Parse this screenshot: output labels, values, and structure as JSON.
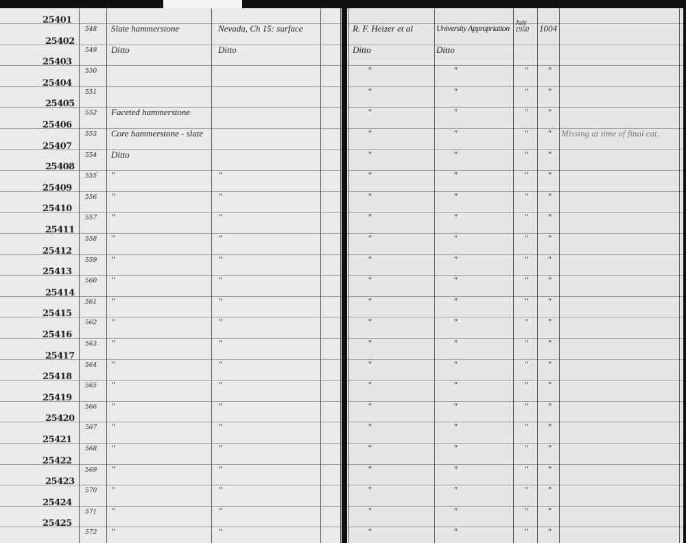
{
  "ledger": {
    "rows": [
      {
        "acc": "25401",
        "cat": "548",
        "desc": "Slate hammerstone",
        "locality": "Nevada, Ch 15: surface",
        "collector": "R. F. Heizer et al",
        "acquired": "University Appropriation",
        "date": "July 1950",
        "value": "1004",
        "remark": ""
      },
      {
        "acc": "25402",
        "cat": "549",
        "desc": "Ditto",
        "locality": "Ditto",
        "collector": "Ditto",
        "acquired": "Ditto",
        "date": "",
        "value": "",
        "remark": ""
      },
      {
        "acc": "25403",
        "cat": "550",
        "desc": "",
        "locality": "",
        "collector": "\"",
        "acquired": "\"",
        "date": "\"",
        "value": "\"",
        "remark": ""
      },
      {
        "acc": "25404",
        "cat": "551",
        "desc": "",
        "locality": "",
        "collector": "\"",
        "acquired": "\"",
        "date": "\"",
        "value": "\"",
        "remark": ""
      },
      {
        "acc": "25405",
        "cat": "552",
        "desc": "Faceted hammerstone",
        "locality": "",
        "collector": "\"",
        "acquired": "\"",
        "date": "\"",
        "value": "\"",
        "remark": ""
      },
      {
        "acc": "25406",
        "cat": "553",
        "desc": "Core hammerstone - slate",
        "locality": "",
        "collector": "\"",
        "acquired": "\"",
        "date": "\"",
        "value": "\"",
        "remark": "Missing at time of final cat."
      },
      {
        "acc": "25407",
        "cat": "554",
        "desc": "Ditto",
        "locality": "",
        "collector": "\"",
        "acquired": "\"",
        "date": "\"",
        "value": "\"",
        "remark": ""
      },
      {
        "acc": "25408",
        "cat": "555",
        "desc": "\"",
        "locality": "\"",
        "collector": "\"",
        "acquired": "\"",
        "date": "\"",
        "value": "\"",
        "remark": ""
      },
      {
        "acc": "25409",
        "cat": "556",
        "desc": "\"",
        "locality": "\"",
        "collector": "\"",
        "acquired": "\"",
        "date": "\"",
        "value": "\"",
        "remark": ""
      },
      {
        "acc": "25410",
        "cat": "557",
        "desc": "\"",
        "locality": "\"",
        "collector": "\"",
        "acquired": "\"",
        "date": "\"",
        "value": "\"",
        "remark": ""
      },
      {
        "acc": "25411",
        "cat": "558",
        "desc": "\"",
        "locality": "\"",
        "collector": "\"",
        "acquired": "\"",
        "date": "\"",
        "value": "\"",
        "remark": ""
      },
      {
        "acc": "25412",
        "cat": "559",
        "desc": "\"",
        "locality": "\"",
        "collector": "\"",
        "acquired": "\"",
        "date": "\"",
        "value": "\"",
        "remark": ""
      },
      {
        "acc": "25413",
        "cat": "560",
        "desc": "\"",
        "locality": "\"",
        "collector": "\"",
        "acquired": "\"",
        "date": "\"",
        "value": "\"",
        "remark": ""
      },
      {
        "acc": "25414",
        "cat": "561",
        "desc": "\"",
        "locality": "\"",
        "collector": "\"",
        "acquired": "\"",
        "date": "\"",
        "value": "\"",
        "remark": ""
      },
      {
        "acc": "25415",
        "cat": "562",
        "desc": "\"",
        "locality": "\"",
        "collector": "\"",
        "acquired": "\"",
        "date": "\"",
        "value": "\"",
        "remark": ""
      },
      {
        "acc": "25416",
        "cat": "563",
        "desc": "\"",
        "locality": "\"",
        "collector": "\"",
        "acquired": "\"",
        "date": "\"",
        "value": "\"",
        "remark": ""
      },
      {
        "acc": "25417",
        "cat": "564",
        "desc": "\"",
        "locality": "\"",
        "collector": "\"",
        "acquired": "\"",
        "date": "\"",
        "value": "\"",
        "remark": ""
      },
      {
        "acc": "25418",
        "cat": "565",
        "desc": "\"",
        "locality": "\"",
        "collector": "\"",
        "acquired": "\"",
        "date": "\"",
        "value": "\"",
        "remark": ""
      },
      {
        "acc": "25419",
        "cat": "566",
        "desc": "\"",
        "locality": "\"",
        "collector": "\"",
        "acquired": "\"",
        "date": "\"",
        "value": "\"",
        "remark": ""
      },
      {
        "acc": "25420",
        "cat": "567",
        "desc": "\"",
        "locality": "\"",
        "collector": "\"",
        "acquired": "\"",
        "date": "\"",
        "value": "\"",
        "remark": ""
      },
      {
        "acc": "25421",
        "cat": "568",
        "desc": "\"",
        "locality": "\"",
        "collector": "\"",
        "acquired": "\"",
        "date": "\"",
        "value": "\"",
        "remark": ""
      },
      {
        "acc": "25422",
        "cat": "569",
        "desc": "\"",
        "locality": "\"",
        "collector": "\"",
        "acquired": "\"",
        "date": "\"",
        "value": "\"",
        "remark": ""
      },
      {
        "acc": "25423",
        "cat": "570",
        "desc": "\"",
        "locality": "\"",
        "collector": "\"",
        "acquired": "\"",
        "date": "\"",
        "value": "\"",
        "remark": ""
      },
      {
        "acc": "25424",
        "cat": "571",
        "desc": "\"",
        "locality": "\"",
        "collector": "\"",
        "acquired": "\"",
        "date": "\"",
        "value": "\"",
        "remark": ""
      },
      {
        "acc": "25425",
        "cat": "572",
        "desc": "\"",
        "locality": "\"",
        "collector": "\"",
        "acquired": "\"",
        "date": "\"",
        "value": "\"",
        "remark": ""
      }
    ]
  }
}
